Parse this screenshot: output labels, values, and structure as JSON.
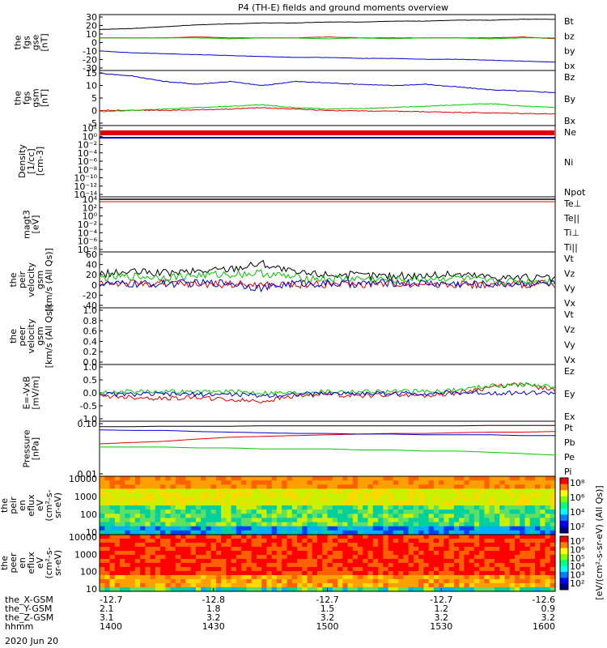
{
  "title": "P4 (TH-E) fields and ground moments overview",
  "date_label": "2020 Jun 20",
  "colors": {
    "black": "#000000",
    "red": "#e00000",
    "green": "#00c800",
    "blue": "#0000d0"
  },
  "chart_data": [
    {
      "type": "line",
      "ylabel": [
        "the",
        "fgs",
        "gse",
        "[nT]"
      ],
      "ylim": [
        -30,
        30
      ],
      "yticks": [
        30,
        20,
        10,
        0,
        -10,
        -20,
        -30
      ],
      "series": [
        {
          "name": "Bt",
          "color": "black",
          "values": [
            14,
            15,
            17,
            19,
            20,
            21,
            21,
            22,
            22,
            23,
            23,
            24,
            24,
            25,
            25
          ]
        },
        {
          "name": "bz",
          "color": "red",
          "values": [
            5,
            5,
            5,
            6,
            5,
            5,
            5,
            6,
            5,
            5,
            5,
            5,
            5,
            6,
            4
          ]
        },
        {
          "name": "by",
          "color": "green",
          "values": [
            5,
            5,
            5,
            5,
            4,
            5,
            5,
            4,
            5,
            4,
            5,
            5,
            4,
            5,
            5
          ]
        },
        {
          "name": "bx",
          "color": "blue",
          "values": [
            -9,
            -11,
            -12,
            -13,
            -14,
            -15,
            -16,
            -16,
            -17,
            -17,
            -18,
            -18,
            -19,
            -20,
            -21
          ]
        }
      ]
    },
    {
      "type": "line",
      "ylabel": [
        "the",
        "fgs",
        "gsm",
        "[nT]"
      ],
      "ylim": [
        -5,
        15
      ],
      "yticks": [
        15,
        10,
        5,
        0,
        -5
      ],
      "series": [
        {
          "name": "Bz",
          "color": "red",
          "values": [
            0.5,
            0.6,
            0.5,
            0.7,
            1,
            1.5,
            1,
            0.5,
            0.3,
            0.2,
            0,
            -0.2,
            -0.4,
            -0.6,
            -0.8
          ]
        },
        {
          "name": "By",
          "color": "green",
          "values": [
            0,
            0.5,
            1,
            1.5,
            2,
            2.5,
            1.5,
            1,
            1.2,
            1.5,
            2,
            2.5,
            3,
            2,
            1.5
          ]
        },
        {
          "name": "Bx",
          "color": "blue",
          "values": [
            14,
            13,
            11,
            10,
            11,
            9.5,
            11,
            10.5,
            10,
            9.5,
            10,
            9,
            8,
            7.5,
            7
          ]
        }
      ]
    },
    {
      "type": "line",
      "ylabel": [
        "Density",
        "[1/cc]",
        "[cm-3]"
      ],
      "log": true,
      "yticks": [
        "10²",
        "10⁰",
        "10⁻²",
        "10⁻⁴",
        "10⁻⁶",
        "10⁻⁸",
        "10⁻¹⁰",
        "10⁻¹²",
        "10⁻¹⁴"
      ],
      "series": [
        {
          "name": "Ne",
          "color": "red"
        },
        {
          "name": "Ni",
          "color": "black"
        },
        {
          "name": "Npot",
          "color": "blue"
        }
      ]
    },
    {
      "type": "line",
      "ylabel": [
        "magt3",
        "[eV]"
      ],
      "log": true,
      "yticks": [
        "10⁴",
        "10²",
        "10⁰",
        "10⁻²",
        "10⁻⁴",
        "10⁻⁶",
        "10⁻⁸"
      ],
      "series": [
        {
          "name": "Te⊥",
          "color": "red"
        },
        {
          "name": "Te||",
          "color": "black"
        },
        {
          "name": "Ti⊥",
          "color": "blue"
        },
        {
          "name": "Ti||",
          "color": "green"
        }
      ]
    },
    {
      "type": "line",
      "ylabel": [
        "the",
        "peir",
        "velocity",
        "gsm",
        "[km/s (All Qs)]"
      ],
      "ylim": [
        -40,
        60
      ],
      "yticks": [
        60,
        40,
        20,
        0,
        -20,
        -40
      ],
      "series": [
        {
          "name": "Vt",
          "color": "black",
          "values": [
            20,
            24,
            22,
            25,
            30,
            40,
            22,
            20,
            18,
            17,
            18,
            20,
            16,
            14,
            12
          ]
        },
        {
          "name": "Vz",
          "color": "red",
          "values": [
            5,
            3,
            4,
            2,
            3,
            0,
            2,
            3,
            2,
            4,
            3,
            2,
            1,
            2,
            2
          ]
        },
        {
          "name": "Vy",
          "color": "green",
          "values": [
            14,
            16,
            15,
            18,
            20,
            22,
            14,
            12,
            12,
            10,
            12,
            14,
            6,
            8,
            8
          ]
        },
        {
          "name": "Vx",
          "color": "blue",
          "values": [
            3,
            2,
            3,
            4,
            5,
            -5,
            4,
            3,
            3,
            5,
            4,
            3,
            2,
            4,
            3
          ]
        }
      ]
    },
    {
      "type": "line",
      "ylabel": [
        "the",
        "peer",
        "velocity",
        "gsm",
        "[km/s (All Qs)]"
      ],
      "ylim": [
        0,
        1
      ],
      "yticks": [
        "1.0",
        "0.8",
        "0.6",
        "0.4",
        "0.2",
        "0.0"
      ],
      "series": [
        {
          "name": "Vt",
          "color": "black"
        },
        {
          "name": "Vz",
          "color": "red"
        },
        {
          "name": "Vy",
          "color": "green"
        },
        {
          "name": "Vx",
          "color": "blue"
        }
      ]
    },
    {
      "type": "line",
      "ylabel": [
        "E=-VxB",
        "[mV/m]"
      ],
      "ylim": [
        -1,
        1
      ],
      "yticks": [
        "1.0",
        "0.5",
        "0.0",
        "-0.5",
        "-1.0"
      ],
      "series": [
        {
          "name": "Ez",
          "color": "red",
          "values": [
            -0.1,
            -0.15,
            -0.2,
            -0.15,
            -0.25,
            -0.3,
            -0.1,
            -0.05,
            -0.1,
            -0.05,
            -0.1,
            0,
            0.2,
            0.3,
            0.1
          ]
        },
        {
          "name": "Ey",
          "color": "green",
          "values": [
            0,
            0.05,
            0.05,
            0.02,
            0.05,
            0,
            0,
            0.05,
            0.05,
            0.05,
            0.05,
            0.1,
            0.25,
            0.3,
            0.2
          ]
        },
        {
          "name": "Ex",
          "color": "blue",
          "values": [
            -0.05,
            -0.05,
            -0.05,
            -0.05,
            -0.05,
            -0.1,
            -0.05,
            -0.02,
            -0.02,
            -0.02,
            -0.02,
            0,
            0,
            0,
            0
          ]
        }
      ]
    },
    {
      "type": "line",
      "ylabel": [
        "Pressure",
        "[nPa]"
      ],
      "log": true,
      "yticks": [
        "0.10",
        "0.01"
      ],
      "series": [
        {
          "name": "Pt",
          "color": "black",
          "values": [
            0.34,
            0.34,
            0.35,
            0.35,
            0.35,
            0.36,
            0.36,
            0.36,
            0.36,
            0.36,
            0.36,
            0.36,
            0.37,
            0.37,
            0.37
          ]
        },
        {
          "name": "Pb",
          "color": "red",
          "values": [
            0.1,
            0.11,
            0.12,
            0.14,
            0.16,
            0.17,
            0.18,
            0.19,
            0.2,
            0.21,
            0.21,
            0.22,
            0.23,
            0.23,
            0.24
          ]
        },
        {
          "name": "Pe",
          "color": "green",
          "values": [
            0.08,
            0.08,
            0.08,
            0.075,
            0.075,
            0.07,
            0.07,
            0.07,
            0.065,
            0.065,
            0.06,
            0.06,
            0.055,
            0.05,
            0.045
          ]
        },
        {
          "name": "Pi",
          "color": "blue",
          "values": [
            0.27,
            0.26,
            0.26,
            0.24,
            0.23,
            0.22,
            0.21,
            0.21,
            0.2,
            0.2,
            0.19,
            0.19,
            0.19,
            0.18,
            0.18
          ]
        }
      ]
    },
    {
      "type": "heatmap",
      "ylabel": [
        "the",
        "peir",
        "en",
        "eflux",
        "eV",
        "(cm²-s-",
        "sr-eV)"
      ],
      "yticks": [
        "10000",
        "1000",
        "100",
        "10"
      ],
      "colorbar_ticks": [
        "10⁸",
        "10⁶",
        "10⁴",
        "10²"
      ]
    },
    {
      "type": "heatmap",
      "ylabel": [
        "the",
        "peer",
        "en",
        "eflux",
        "eV",
        "(cm²-s-",
        "sr-eV)"
      ],
      "yticks": [
        "10000",
        "1000",
        "100",
        "10"
      ],
      "colorbar_ticks": [
        "10⁷",
        "10⁶",
        "10⁵",
        "10⁴",
        "10³",
        "10²"
      ]
    }
  ],
  "colorbar_label": "[eV/(cm²-s-sr-eV) (All Qs)]",
  "xaxis": {
    "row_labels": [
      "the_X-GSM",
      "the_Y-GSM",
      "the_Z-GSM",
      "hhmm"
    ],
    "ticks": [
      {
        "x_gsm": "-12.7",
        "y_gsm": "2.1",
        "z_gsm": "3.1",
        "hhmm": "1400"
      },
      {
        "x_gsm": "-12.8",
        "y_gsm": "1.8",
        "z_gsm": "3.2",
        "hhmm": "1430"
      },
      {
        "x_gsm": "-12.7",
        "y_gsm": "1.5",
        "z_gsm": "3.2",
        "hhmm": "1500"
      },
      {
        "x_gsm": "-12.7",
        "y_gsm": "1.2",
        "z_gsm": "3.2",
        "hhmm": "1530"
      },
      {
        "x_gsm": "-12.6",
        "y_gsm": "0.9",
        "z_gsm": "3.2",
        "hhmm": "1600"
      }
    ]
  }
}
